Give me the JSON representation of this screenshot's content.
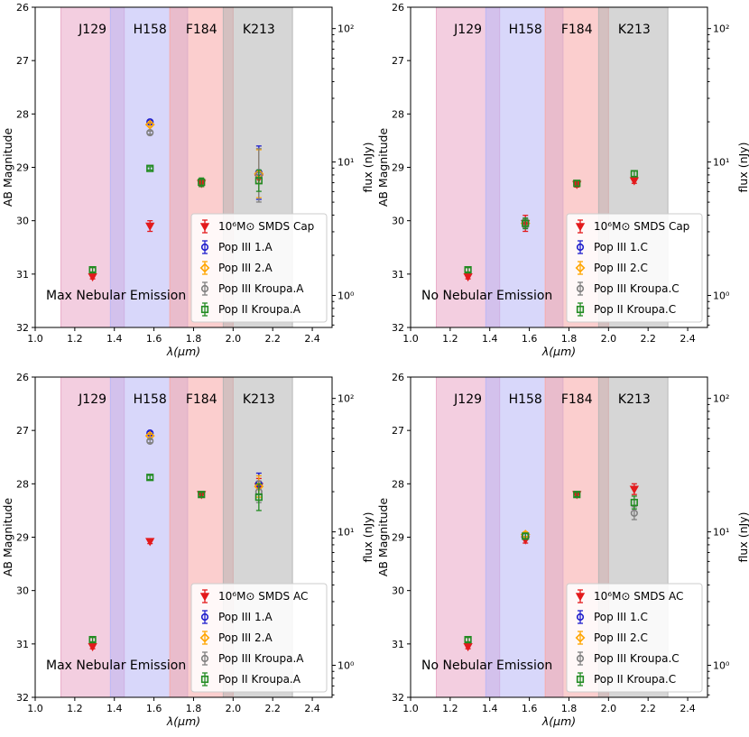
{
  "chart_data": [
    {
      "type": "scatter",
      "panel": "top-left",
      "note": "Max Nebular Emission",
      "xlabel": "λ(μm)",
      "ylabel": "AB Magnitude",
      "ylabel_right": "flux (nJy)",
      "xlim": [
        1.0,
        2.5
      ],
      "ylim": [
        32,
        26
      ],
      "xticks": [
        "1.0",
        "1.2",
        "1.4",
        "1.6",
        "1.8",
        "2.0",
        "2.2",
        "2.4"
      ],
      "yticks": [
        "26",
        "27",
        "28",
        "29",
        "30",
        "31",
        "32"
      ],
      "rticks": [
        {
          "value": 100,
          "label": "10²"
        },
        {
          "value": 10,
          "label": "10¹"
        },
        {
          "value": 1,
          "label": "10⁰"
        }
      ],
      "bands": [
        {
          "name": "J129",
          "range": [
            1.13,
            1.45
          ],
          "color": "#e9a6c7"
        },
        {
          "name": "H158",
          "range": [
            1.38,
            1.77
          ],
          "color": "#b8b6f6"
        },
        {
          "name": "F184",
          "range": [
            1.68,
            2.0
          ],
          "color": "#f8a6a6"
        },
        {
          "name": "K213",
          "range": [
            1.95,
            2.3
          ],
          "color": "#b4b4b4"
        }
      ],
      "legend": [
        "10⁶M⊙ SMDS Cap",
        "Pop III 1.A",
        "Pop III 2.A",
        "Pop III Kroupa.A",
        "Pop II Kroupa.A"
      ],
      "series": [
        {
          "name": "10⁶M⊙ SMDS Cap",
          "marker": "tri",
          "color": "#e31a1c",
          "points": [
            {
              "x": 1.29,
              "y": 31.05,
              "err": 0.04
            },
            {
              "x": 1.58,
              "y": 30.1,
              "err": 0.1
            },
            {
              "x": 1.84,
              "y": 29.3,
              "err": 0.06
            },
            {
              "x": 2.13,
              "y": 29.2,
              "err": 0.1
            }
          ]
        },
        {
          "name": "Pop III 1.A",
          "marker": "circle",
          "color": "#1f1fcc",
          "points": [
            {
              "x": 1.58,
              "y": 28.15,
              "err": 0.03
            },
            {
              "x": 2.13,
              "y": 29.1,
              "err": 0.5
            }
          ]
        },
        {
          "name": "Pop III 2.A",
          "marker": "diamond",
          "color": "#ffa500",
          "points": [
            {
              "x": 1.58,
              "y": 28.2,
              "err": 0.03
            },
            {
              "x": 2.13,
              "y": 29.12,
              "err": 0.45
            }
          ]
        },
        {
          "name": "Pop III Kroupa.A",
          "marker": "circle",
          "color": "#808080",
          "points": [
            {
              "x": 1.58,
              "y": 28.35,
              "err": 0.03
            },
            {
              "x": 2.13,
              "y": 29.15,
              "err": 0.5
            }
          ]
        },
        {
          "name": "Pop II Kroupa.A",
          "marker": "square",
          "color": "#228b22",
          "points": [
            {
              "x": 1.29,
              "y": 30.92,
              "err": 0.04
            },
            {
              "x": 1.58,
              "y": 29.02,
              "err": 0.03
            },
            {
              "x": 1.84,
              "y": 29.28,
              "err": 0.08
            },
            {
              "x": 2.13,
              "y": 29.25,
              "err": 0.2
            }
          ]
        }
      ]
    },
    {
      "type": "scatter",
      "panel": "top-right",
      "note": "No Nebular Emission",
      "xlabel": "λ(μm)",
      "ylabel": "AB Magnitude",
      "ylabel_right": "flux (nJy)",
      "xlim": [
        1.0,
        2.5
      ],
      "ylim": [
        32,
        26
      ],
      "xticks": [
        "1.0",
        "1.2",
        "1.4",
        "1.6",
        "1.8",
        "2.0",
        "2.2",
        "2.4"
      ],
      "yticks": [
        "26",
        "27",
        "28",
        "29",
        "30",
        "31",
        "32"
      ],
      "rticks": [
        {
          "value": 100,
          "label": "10²"
        },
        {
          "value": 10,
          "label": "10¹"
        },
        {
          "value": 1,
          "label": "10⁰"
        }
      ],
      "bands": [
        {
          "name": "J129",
          "range": [
            1.13,
            1.45
          ],
          "color": "#e9a6c7"
        },
        {
          "name": "H158",
          "range": [
            1.38,
            1.77
          ],
          "color": "#b8b6f6"
        },
        {
          "name": "F184",
          "range": [
            1.68,
            2.0
          ],
          "color": "#f8a6a6"
        },
        {
          "name": "K213",
          "range": [
            1.95,
            2.3
          ],
          "color": "#b4b4b4"
        }
      ],
      "legend": [
        "10⁶M⊙ SMDS Cap",
        "Pop III 1.C",
        "Pop III 2.C",
        "Pop III Kroupa.C",
        "Pop II Kroupa.C"
      ],
      "series": [
        {
          "name": "10⁶M⊙ SMDS Cap",
          "marker": "tri",
          "color": "#e31a1c",
          "points": [
            {
              "x": 1.29,
              "y": 31.05,
              "err": 0.04
            },
            {
              "x": 1.58,
              "y": 30.05,
              "err": 0.15
            },
            {
              "x": 1.84,
              "y": 29.32,
              "err": 0.05
            },
            {
              "x": 2.13,
              "y": 29.25,
              "err": 0.05
            }
          ]
        },
        {
          "name": "Pop III 1.C",
          "marker": "circle",
          "color": "#1f1fcc",
          "points": [
            {
              "x": 1.58,
              "y": 30.05,
              "err": 0.08
            }
          ]
        },
        {
          "name": "Pop III 2.C",
          "marker": "diamond",
          "color": "#ffa500",
          "points": [
            {
              "x": 1.58,
              "y": 30.05,
              "err": 0.08
            }
          ]
        },
        {
          "name": "Pop III Kroupa.C",
          "marker": "circle",
          "color": "#808080",
          "points": [
            {
              "x": 1.58,
              "y": 30.05,
              "err": 0.08
            }
          ]
        },
        {
          "name": "Pop II Kroupa.C",
          "marker": "square",
          "color": "#228b22",
          "points": [
            {
              "x": 1.29,
              "y": 30.92,
              "err": 0.04
            },
            {
              "x": 1.58,
              "y": 30.05,
              "err": 0.1
            },
            {
              "x": 1.84,
              "y": 29.3,
              "err": 0.05
            },
            {
              "x": 2.13,
              "y": 29.12,
              "err": 0.05
            }
          ]
        }
      ]
    },
    {
      "type": "scatter",
      "panel": "bottom-left",
      "note": "Max Nebular Emission",
      "xlabel": "λ(μm)",
      "ylabel": "AB Magnitude",
      "ylabel_right": "flux (nJy)",
      "xlim": [
        1.0,
        2.5
      ],
      "ylim": [
        32,
        26
      ],
      "xticks": [
        "1.0",
        "1.2",
        "1.4",
        "1.6",
        "1.8",
        "2.0",
        "2.2",
        "2.4"
      ],
      "yticks": [
        "26",
        "27",
        "28",
        "29",
        "30",
        "31",
        "32"
      ],
      "rticks": [
        {
          "value": 100,
          "label": "10²"
        },
        {
          "value": 10,
          "label": "10¹"
        },
        {
          "value": 1,
          "label": "10⁰"
        }
      ],
      "bands": [
        {
          "name": "J129",
          "range": [
            1.13,
            1.45
          ],
          "color": "#e9a6c7"
        },
        {
          "name": "H158",
          "range": [
            1.38,
            1.77
          ],
          "color": "#b8b6f6"
        },
        {
          "name": "F184",
          "range": [
            1.68,
            2.0
          ],
          "color": "#f8a6a6"
        },
        {
          "name": "K213",
          "range": [
            1.95,
            2.3
          ],
          "color": "#b4b4b4"
        }
      ],
      "legend": [
        "10⁶M⊙ SMDS AC",
        "Pop III 1.A",
        "Pop III 2.A",
        "Pop III Kroupa.A",
        "Pop II Kroupa.A"
      ],
      "series": [
        {
          "name": "10⁶M⊙ SMDS AC",
          "marker": "tri",
          "color": "#e31a1c",
          "points": [
            {
              "x": 1.29,
              "y": 31.05,
              "err": 0.04
            },
            {
              "x": 1.58,
              "y": 29.08,
              "err": 0.04
            },
            {
              "x": 1.84,
              "y": 28.2,
              "err": 0.04
            },
            {
              "x": 2.13,
              "y": 28.05,
              "err": 0.15
            }
          ]
        },
        {
          "name": "Pop III 1.A",
          "marker": "circle",
          "color": "#1f1fcc",
          "points": [
            {
              "x": 1.58,
              "y": 27.05,
              "err": 0.03
            },
            {
              "x": 2.13,
              "y": 28.0,
              "err": 0.2
            }
          ]
        },
        {
          "name": "Pop III 2.A",
          "marker": "diamond",
          "color": "#ffa500",
          "points": [
            {
              "x": 1.58,
              "y": 27.1,
              "err": 0.03
            },
            {
              "x": 2.13,
              "y": 28.05,
              "err": 0.2
            }
          ]
        },
        {
          "name": "Pop III Kroupa.A",
          "marker": "circle",
          "color": "#808080",
          "points": [
            {
              "x": 1.58,
              "y": 27.2,
              "err": 0.03
            },
            {
              "x": 2.13,
              "y": 28.15,
              "err": 0.2
            }
          ]
        },
        {
          "name": "Pop II Kroupa.A",
          "marker": "square",
          "color": "#228b22",
          "points": [
            {
              "x": 1.29,
              "y": 30.92,
              "err": 0.04
            },
            {
              "x": 1.58,
              "y": 27.88,
              "err": 0.04
            },
            {
              "x": 1.84,
              "y": 28.2,
              "err": 0.04
            },
            {
              "x": 2.13,
              "y": 28.25,
              "err": 0.25
            }
          ]
        }
      ]
    },
    {
      "type": "scatter",
      "panel": "bottom-right",
      "note": "No Nebular Emission",
      "xlabel": "λ(μm)",
      "ylabel": "AB Magnitude",
      "ylabel_right": "flux (nJy)",
      "xlim": [
        1.0,
        2.5
      ],
      "ylim": [
        32,
        26
      ],
      "xticks": [
        "1.0",
        "1.2",
        "1.4",
        "1.6",
        "1.8",
        "2.0",
        "2.2",
        "2.4"
      ],
      "yticks": [
        "26",
        "27",
        "28",
        "29",
        "30",
        "31",
        "32"
      ],
      "rticks": [
        {
          "value": 100,
          "label": "10²"
        },
        {
          "value": 10,
          "label": "10¹"
        },
        {
          "value": 1,
          "label": "10⁰"
        }
      ],
      "bands": [
        {
          "name": "J129",
          "range": [
            1.13,
            1.45
          ],
          "color": "#e9a6c7"
        },
        {
          "name": "H158",
          "range": [
            1.38,
            1.77
          ],
          "color": "#b8b6f6"
        },
        {
          "name": "F184",
          "range": [
            1.68,
            2.0
          ],
          "color": "#f8a6a6"
        },
        {
          "name": "K213",
          "range": [
            1.95,
            2.3
          ],
          "color": "#b4b4b4"
        }
      ],
      "legend": [
        "10⁶M⊙ SMDS AC",
        "Pop III 1.C",
        "Pop III 2.C",
        "Pop III Kroupa.C",
        "Pop II Kroupa.C"
      ],
      "series": [
        {
          "name": "10⁶M⊙ SMDS AC",
          "marker": "tri",
          "color": "#e31a1c",
          "points": [
            {
              "x": 1.29,
              "y": 31.05,
              "err": 0.04
            },
            {
              "x": 1.58,
              "y": 29.05,
              "err": 0.06
            },
            {
              "x": 1.84,
              "y": 28.2,
              "err": 0.04
            },
            {
              "x": 2.13,
              "y": 28.1,
              "err": 0.1
            }
          ]
        },
        {
          "name": "Pop III 1.C",
          "marker": "circle",
          "color": "#1f1fcc",
          "points": [
            {
              "x": 1.58,
              "y": 28.98,
              "err": 0.05
            }
          ]
        },
        {
          "name": "Pop III 2.C",
          "marker": "diamond",
          "color": "#ffa500",
          "points": [
            {
              "x": 1.58,
              "y": 28.95,
              "err": 0.05
            }
          ]
        },
        {
          "name": "Pop III Kroupa.C",
          "marker": "circle",
          "color": "#808080",
          "points": [
            {
              "x": 1.58,
              "y": 28.98,
              "err": 0.05
            },
            {
              "x": 2.13,
              "y": 28.55,
              "err": 0.12
            }
          ]
        },
        {
          "name": "Pop II Kroupa.C",
          "marker": "square",
          "color": "#228b22",
          "points": [
            {
              "x": 1.29,
              "y": 30.92,
              "err": 0.04
            },
            {
              "x": 1.58,
              "y": 28.98,
              "err": 0.05
            },
            {
              "x": 1.84,
              "y": 28.2,
              "err": 0.04
            },
            {
              "x": 2.13,
              "y": 28.35,
              "err": 0.12
            }
          ]
        }
      ]
    }
  ]
}
